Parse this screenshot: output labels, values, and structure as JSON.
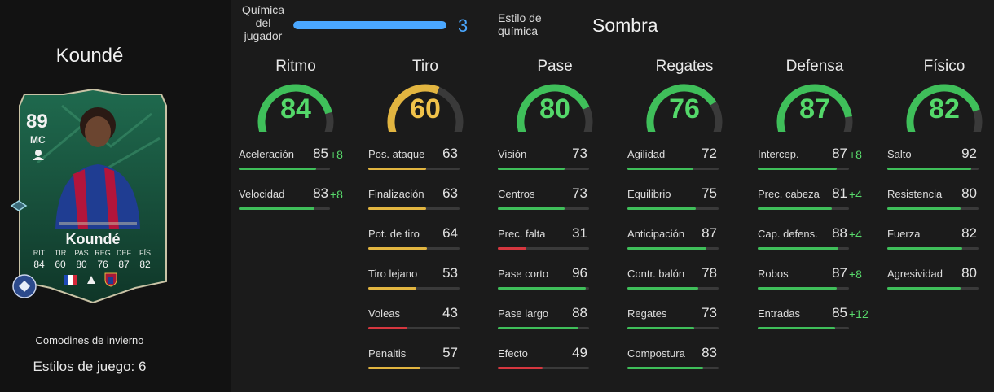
{
  "player": {
    "name": "Koundé",
    "card_rating": "89",
    "card_position": "MC",
    "card_name": "Koundé",
    "card_stats": [
      {
        "label": "RIT",
        "value": "84"
      },
      {
        "label": "TIR",
        "value": "60"
      },
      {
        "label": "PAS",
        "value": "80"
      },
      {
        "label": "REG",
        "value": "76"
      },
      {
        "label": "DEF",
        "value": "87"
      },
      {
        "label": "FÍS",
        "value": "82"
      }
    ],
    "promo": "Comodines de invierno",
    "playstyles": "Estilos de juego: 6"
  },
  "chemistry": {
    "label": "Química del jugador",
    "value": "3",
    "fraction": 1,
    "style_label": "Estilo de química",
    "style_value": "Sombra"
  },
  "colors": {
    "green": "#3fbf5a",
    "yellow": "#e2b540",
    "red": "#d6373f",
    "blue": "#4aa7ff",
    "boost": "#58d96b"
  },
  "columns": [
    {
      "title": "Ritmo",
      "value": "84",
      "level": 84,
      "color": "#3fbf5a",
      "stats": [
        {
          "name": "Aceleración",
          "value": "85",
          "level": 85,
          "boost": "+8",
          "color": "#3fbf5a"
        },
        {
          "name": "Velocidad",
          "value": "83",
          "level": 83,
          "boost": "+8",
          "color": "#3fbf5a"
        }
      ]
    },
    {
      "title": "Tiro",
      "value": "60",
      "level": 60,
      "color": "#e2b540",
      "stats": [
        {
          "name": "Pos. ataque",
          "value": "63",
          "level": 63,
          "boost": "",
          "color": "#e2b540"
        },
        {
          "name": "Finalización",
          "value": "63",
          "level": 63,
          "boost": "",
          "color": "#e2b540"
        },
        {
          "name": "Pot. de tiro",
          "value": "64",
          "level": 64,
          "boost": "",
          "color": "#e2b540"
        },
        {
          "name": "Tiro lejano",
          "value": "53",
          "level": 53,
          "boost": "",
          "color": "#e2b540"
        },
        {
          "name": "Voleas",
          "value": "43",
          "level": 43,
          "boost": "",
          "color": "#d6373f"
        },
        {
          "name": "Penaltis",
          "value": "57",
          "level": 57,
          "boost": "",
          "color": "#e2b540"
        }
      ]
    },
    {
      "title": "Pase",
      "value": "80",
      "level": 80,
      "color": "#3fbf5a",
      "stats": [
        {
          "name": "Visión",
          "value": "73",
          "level": 73,
          "boost": "",
          "color": "#3fbf5a"
        },
        {
          "name": "Centros",
          "value": "73",
          "level": 73,
          "boost": "",
          "color": "#3fbf5a"
        },
        {
          "name": "Prec. falta",
          "value": "31",
          "level": 31,
          "boost": "",
          "color": "#d6373f"
        },
        {
          "name": "Pase corto",
          "value": "96",
          "level": 96,
          "boost": "",
          "color": "#3fbf5a"
        },
        {
          "name": "Pase largo",
          "value": "88",
          "level": 88,
          "boost": "",
          "color": "#3fbf5a"
        },
        {
          "name": "Efecto",
          "value": "49",
          "level": 49,
          "boost": "",
          "color": "#d6373f"
        }
      ]
    },
    {
      "title": "Regates",
      "value": "76",
      "level": 76,
      "color": "#3fbf5a",
      "stats": [
        {
          "name": "Agilidad",
          "value": "72",
          "level": 72,
          "boost": "",
          "color": "#3fbf5a"
        },
        {
          "name": "Equilibrio",
          "value": "75",
          "level": 75,
          "boost": "",
          "color": "#3fbf5a"
        },
        {
          "name": "Anticipación",
          "value": "87",
          "level": 87,
          "boost": "",
          "color": "#3fbf5a"
        },
        {
          "name": "Contr. balón",
          "value": "78",
          "level": 78,
          "boost": "",
          "color": "#3fbf5a"
        },
        {
          "name": "Regates",
          "value": "73",
          "level": 73,
          "boost": "",
          "color": "#3fbf5a"
        },
        {
          "name": "Compostura",
          "value": "83",
          "level": 83,
          "boost": "",
          "color": "#3fbf5a"
        }
      ]
    },
    {
      "title": "Defensa",
      "value": "87",
      "level": 87,
      "color": "#3fbf5a",
      "stats": [
        {
          "name": "Intercep.",
          "value": "87",
          "level": 87,
          "boost": "+8",
          "color": "#3fbf5a"
        },
        {
          "name": "Prec. cabeza",
          "value": "81",
          "level": 81,
          "boost": "+4",
          "color": "#3fbf5a"
        },
        {
          "name": "Cap. defens.",
          "value": "88",
          "level": 88,
          "boost": "+4",
          "color": "#3fbf5a"
        },
        {
          "name": "Robos",
          "value": "87",
          "level": 87,
          "boost": "+8",
          "color": "#3fbf5a"
        },
        {
          "name": "Entradas",
          "value": "85",
          "level": 85,
          "boost": "+12",
          "color": "#3fbf5a"
        }
      ]
    },
    {
      "title": "Físico",
      "value": "82",
      "level": 82,
      "color": "#3fbf5a",
      "stats": [
        {
          "name": "Salto",
          "value": "92",
          "level": 92,
          "boost": "",
          "color": "#3fbf5a"
        },
        {
          "name": "Resistencia",
          "value": "80",
          "level": 80,
          "boost": "",
          "color": "#3fbf5a"
        },
        {
          "name": "Fuerza",
          "value": "82",
          "level": 82,
          "boost": "",
          "color": "#3fbf5a"
        },
        {
          "name": "Agresividad",
          "value": "80",
          "level": 80,
          "boost": "",
          "color": "#3fbf5a"
        }
      ]
    }
  ]
}
